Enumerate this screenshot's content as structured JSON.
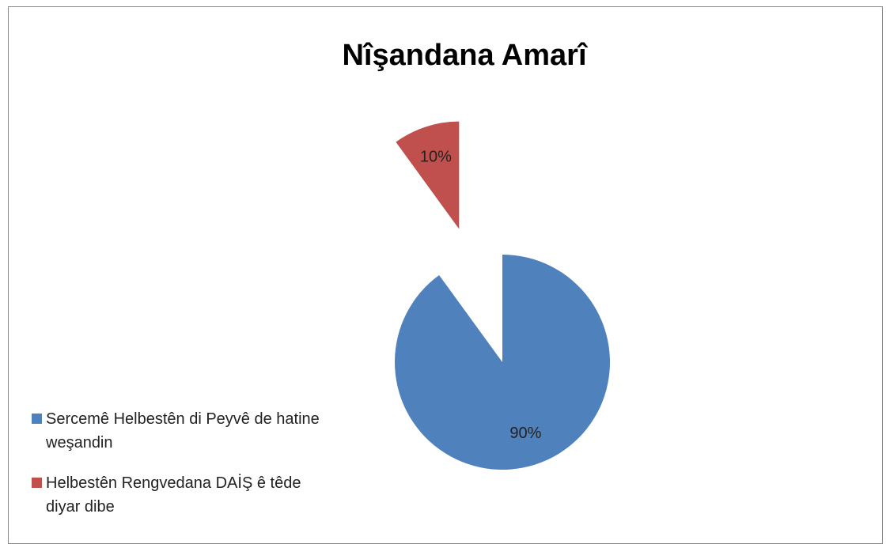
{
  "chart_data": {
    "type": "pie",
    "title": "Nîşandana Amarî",
    "categories": [
      "Sercemê Helbestên di Peyvê de hatine weşandin",
      "Helbestên Rengvedana DAİŞ ê têde diyar dibe"
    ],
    "values": [
      90,
      10
    ],
    "value_labels": [
      "90%",
      "10%"
    ],
    "colors": [
      "#4f81bd",
      "#c0504d"
    ],
    "legend": "left"
  }
}
